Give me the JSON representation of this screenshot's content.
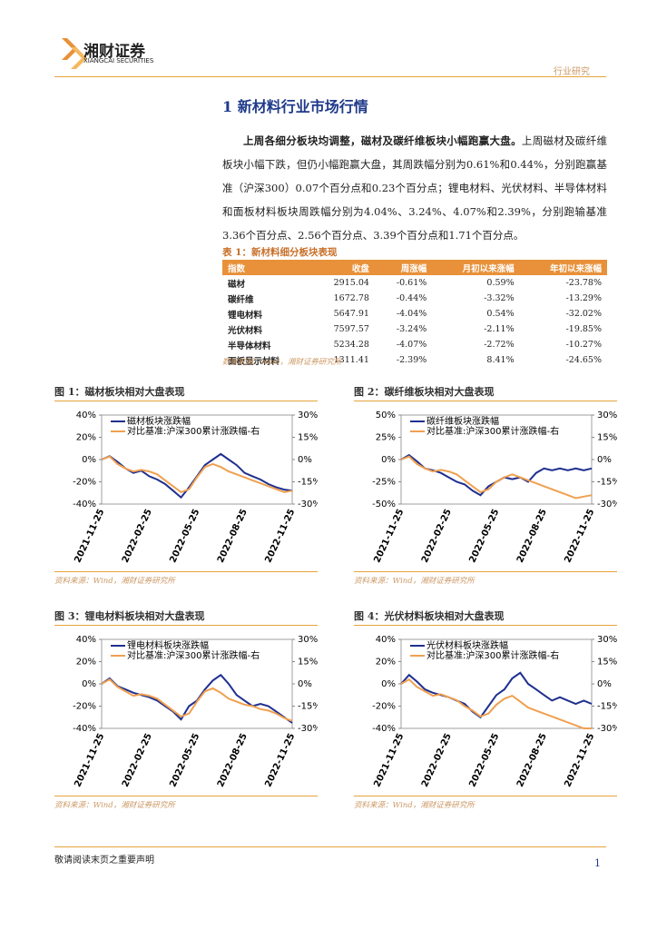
{
  "header": {
    "brand": "湘财证券",
    "brand_en": "XIANGCAI SECURITIES",
    "category": "行业研究"
  },
  "section_title": "1 新材料行业市场行情",
  "paragraph": {
    "lead": "上周各细分板块均调整，磁材及碳纤维板块小幅跑赢大盘。",
    "body": "上周磁材及碳纤维板块小幅下跌，但仍小幅跑赢大盘，其周跌幅分别为0.61%和0.44%，分别跑赢基准（沪深300）0.07个百分点和0.23个百分点；锂电材料、光伏材料、半导体材料和面板材料板块周跌幅分别为4.04%、3.24%、4.07%和2.39%，分别跑输基准3.36个百分点、2.56个百分点、3.39个百分点和1.71个百分点。"
  },
  "table": {
    "caption": "表 1：新材料细分板块表现",
    "columns": [
      "指数",
      "收盘",
      "周涨幅",
      "月初以来涨幅",
      "年初以来涨幅"
    ],
    "rows": [
      [
        "磁材",
        "2915.04",
        "-0.61%",
        "0.59%",
        "-23.78%"
      ],
      [
        "碳纤维",
        "1672.78",
        "-0.44%",
        "-3.32%",
        "-13.29%"
      ],
      [
        "锂电材料",
        "5647.91",
        "-4.04%",
        "0.54%",
        "-32.02%"
      ],
      [
        "光伏材料",
        "7597.57",
        "-3.24%",
        "-2.11%",
        "-19.85%"
      ],
      [
        "半导体材料",
        "5234.28",
        "-4.07%",
        "-2.72%",
        "-10.27%"
      ],
      [
        "面板显示材料",
        "1311.41",
        "-2.39%",
        "8.41%",
        "-24.65%"
      ]
    ],
    "source": "数据来源：wind，湘财证券研究所"
  },
  "chart_data": [
    {
      "type": "line",
      "title": "图 1：磁材板块相对大盘表现",
      "source": "资料来源：Wind，湘财证券研究所",
      "categories": [
        "2021-11-25",
        null,
        null,
        null,
        null,
        null,
        "2022-02-25",
        null,
        null,
        null,
        null,
        null,
        "2022-05-25",
        null,
        null,
        null,
        null,
        null,
        "2022-08-25",
        null,
        null,
        null,
        null,
        null,
        "2022-11-25"
      ],
      "ylim": [
        -40,
        40
      ],
      "yticks": [
        {
          "value": -40,
          "label": "-40%"
        },
        {
          "value": -20,
          "label": "-20%"
        },
        {
          "value": 0,
          "label": "0%"
        },
        {
          "value": 20,
          "label": "20%"
        },
        {
          "value": 40,
          "label": "40%"
        }
      ],
      "y2lim": [
        -30,
        30
      ],
      "y2ticks": [
        {
          "value": -30,
          "label": "-30%"
        },
        {
          "value": -15,
          "label": "-15%"
        },
        {
          "value": 0,
          "label": "0%"
        },
        {
          "value": 15,
          "label": "15%"
        },
        {
          "value": 30,
          "label": "30%"
        }
      ],
      "series": [
        {
          "name": "磁材板块涨跌幅",
          "color": "#1f2f8f",
          "values": [
            0,
            3,
            -2,
            -8,
            -12,
            -10,
            -15,
            -18,
            -22,
            -28,
            -34,
            -25,
            -15,
            -5,
            0,
            5,
            0,
            -5,
            -12,
            -15,
            -18,
            -22,
            -25,
            -27,
            -28
          ]
        },
        {
          "name": "对比基准:沪深300累计涨跌幅-右",
          "color": "#f0a050",
          "axis": "y2",
          "values": [
            0,
            2,
            -3,
            -6,
            -8,
            -7,
            -8,
            -10,
            -14,
            -18,
            -22,
            -20,
            -12,
            -5,
            -3,
            -5,
            -8,
            -10,
            -12,
            -14,
            -16,
            -18,
            -20,
            -22,
            -21
          ]
        }
      ]
    },
    {
      "type": "line",
      "title": "图 2：碳纤维板块相对大盘表现",
      "source": "资料来源：Wind，湘财证券研究所",
      "categories": [
        "2021-11-25",
        null,
        null,
        null,
        null,
        null,
        "2022-02-25",
        null,
        null,
        null,
        null,
        null,
        "2022-05-25",
        null,
        null,
        null,
        null,
        null,
        "2022-08-25",
        null,
        null,
        null,
        null,
        null,
        "2022-11-25"
      ],
      "ylim": [
        -50,
        50
      ],
      "yticks": [
        {
          "value": -50,
          "label": "-50%"
        },
        {
          "value": -25,
          "label": "-25%"
        },
        {
          "value": 0,
          "label": "0%"
        },
        {
          "value": 25,
          "label": "25%"
        },
        {
          "value": 50,
          "label": "50%"
        }
      ],
      "y2lim": [
        -30,
        30
      ],
      "y2ticks": [
        {
          "value": -30,
          "label": "-30%"
        },
        {
          "value": -15,
          "label": "-15%"
        },
        {
          "value": 0,
          "label": "0%"
        },
        {
          "value": 15,
          "label": "15%"
        },
        {
          "value": 30,
          "label": "30%"
        }
      ],
      "series": [
        {
          "name": "碳纤维板块涨跌幅",
          "color": "#1f2f8f",
          "values": [
            0,
            5,
            -2,
            -10,
            -12,
            -15,
            -20,
            -25,
            -28,
            -35,
            -40,
            -30,
            -25,
            -20,
            -22,
            -20,
            -25,
            -15,
            -10,
            -12,
            -10,
            -12,
            -10,
            -12,
            -10
          ]
        },
        {
          "name": "对比基准:沪深300累计涨跌幅-右",
          "color": "#f0a050",
          "axis": "y2",
          "values": [
            0,
            2,
            -3,
            -6,
            -8,
            -7,
            -8,
            -10,
            -14,
            -18,
            -22,
            -20,
            -15,
            -12,
            -10,
            -12,
            -14,
            -16,
            -18,
            -20,
            -22,
            -24,
            -26,
            -25,
            -24
          ]
        }
      ]
    },
    {
      "type": "line",
      "title": "图 3：锂电材料板块相对大盘表现",
      "source": "资料来源：Wind，湘财证券研究所",
      "categories": [
        "2021-11-25",
        null,
        null,
        null,
        null,
        null,
        "2022-02-25",
        null,
        null,
        null,
        null,
        null,
        "2022-05-25",
        null,
        null,
        null,
        null,
        null,
        "2022-08-25",
        null,
        null,
        null,
        null,
        null,
        "2022-11-25"
      ],
      "ylim": [
        -40,
        40
      ],
      "yticks": [
        {
          "value": -40,
          "label": "-40%"
        },
        {
          "value": -20,
          "label": "-20%"
        },
        {
          "value": 0,
          "label": "0%"
        },
        {
          "value": 20,
          "label": "20%"
        },
        {
          "value": 40,
          "label": "40%"
        }
      ],
      "y2lim": [
        -30,
        30
      ],
      "y2ticks": [
        {
          "value": -30,
          "label": "-30%"
        },
        {
          "value": -15,
          "label": "-15%"
        },
        {
          "value": 0,
          "label": "0%"
        },
        {
          "value": 15,
          "label": "15%"
        },
        {
          "value": 30,
          "label": "30%"
        }
      ],
      "series": [
        {
          "name": "锂电材料板块涨跌幅",
          "color": "#1f2f8f",
          "values": [
            0,
            5,
            -2,
            -5,
            -8,
            -10,
            -12,
            -15,
            -20,
            -25,
            -32,
            -20,
            -15,
            -5,
            3,
            8,
            0,
            -10,
            -15,
            -20,
            -18,
            -20,
            -25,
            -30,
            -35
          ]
        },
        {
          "name": "对比基准:沪深300累计涨跌幅-右",
          "color": "#f0a050",
          "axis": "y2",
          "values": [
            0,
            3,
            -2,
            -5,
            -8,
            -7,
            -8,
            -10,
            -14,
            -18,
            -22,
            -20,
            -12,
            -5,
            -3,
            -6,
            -10,
            -12,
            -14,
            -15,
            -17,
            -18,
            -20,
            -23,
            -25
          ]
        }
      ]
    },
    {
      "type": "line",
      "title": "图 4：光伏材料板块相对大盘表现",
      "source": "资料来源：Wind，湘财证券研究所",
      "categories": [
        "2021-11-25",
        null,
        null,
        null,
        null,
        null,
        "2022-02-25",
        null,
        null,
        null,
        null,
        null,
        "2022-05-25",
        null,
        null,
        null,
        null,
        null,
        "2022-08-25",
        null,
        null,
        null,
        null,
        null,
        "2022-11-25"
      ],
      "ylim": [
        -40,
        40
      ],
      "yticks": [
        {
          "value": -40,
          "label": "-40%"
        },
        {
          "value": -20,
          "label": "-20%"
        },
        {
          "value": 0,
          "label": "0%"
        },
        {
          "value": 20,
          "label": "20%"
        },
        {
          "value": 40,
          "label": "40%"
        }
      ],
      "y2lim": [
        -30,
        30
      ],
      "y2ticks": [
        {
          "value": -30,
          "label": "-30%"
        },
        {
          "value": -15,
          "label": "-15%"
        },
        {
          "value": 0,
          "label": "0%"
        },
        {
          "value": 15,
          "label": "15%"
        },
        {
          "value": 30,
          "label": "30%"
        }
      ],
      "series": [
        {
          "name": "光伏材料板块涨跌幅",
          "color": "#1f2f8f",
          "values": [
            0,
            8,
            2,
            -5,
            -8,
            -10,
            -12,
            -15,
            -18,
            -25,
            -30,
            -20,
            -10,
            -5,
            5,
            10,
            0,
            -5,
            -10,
            -15,
            -12,
            -15,
            -18,
            -15,
            -18
          ]
        },
        {
          "name": "对比基准:沪深300累计涨跌幅-右",
          "color": "#f0a050",
          "axis": "y2",
          "values": [
            0,
            3,
            -2,
            -5,
            -8,
            -7,
            -9,
            -11,
            -15,
            -18,
            -22,
            -20,
            -14,
            -10,
            -8,
            -12,
            -16,
            -18,
            -20,
            -22,
            -24,
            -26,
            -28,
            -30,
            -30
          ]
        }
      ]
    }
  ],
  "footer": {
    "notice": "敬请阅读末页之重要声明",
    "page": "1"
  }
}
